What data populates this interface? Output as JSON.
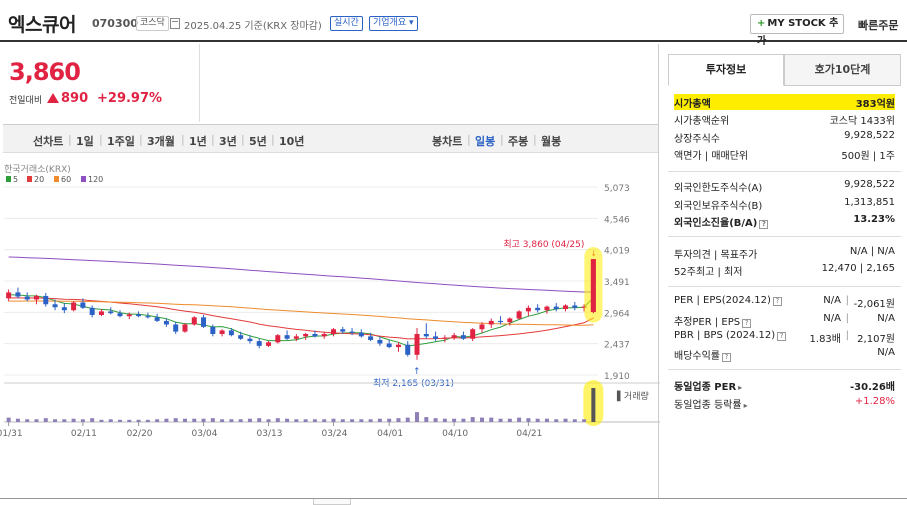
{
  "header": {
    "name": "엑스큐어",
    "code": "070300",
    "market": "코스닥",
    "date": "2025.04.25 기준(KRX 장마감)",
    "realtime": "실시간",
    "overview": "기업개요",
    "mystock": "MY STOCK 추가",
    "quick_order": "빠른주문"
  },
  "price": {
    "current": "3,860",
    "change_label": "전일대비",
    "change": "890",
    "rate": "+29.97%"
  },
  "chart_tabs": {
    "line": "선차트",
    "periods": [
      "1일",
      "1주일",
      "3개월",
      "1년",
      "3년",
      "5년",
      "10년"
    ],
    "candle": "봉차트",
    "candle_periods": [
      "일봉",
      "주봉",
      "월봉"
    ],
    "active_candle": "일봉"
  },
  "chart_data": {
    "type": "candlestick",
    "source": "한국거래소(KRX)",
    "ma_legend": [
      {
        "name": "5",
        "color": "#2e9e3a"
      },
      {
        "name": "20",
        "color": "#e33b3b"
      },
      {
        "name": "60",
        "color": "#ef8b2c"
      },
      {
        "name": "120",
        "color": "#8e4fc0"
      }
    ],
    "y_ticks": [
      "5,073",
      "4,546",
      "4,019",
      "3,491",
      "2,964",
      "2,437",
      "1,910"
    ],
    "ylim": [
      1910,
      5073
    ],
    "x_ticks": [
      "01/31",
      "02/11",
      "02/20",
      "03/04",
      "03/13",
      "03/24",
      "04/01",
      "04/10",
      "04/21"
    ],
    "high_label": "최고 3,860 (04/25)",
    "low_label": "최저 2,165 (03/31)",
    "volume_label": "거래량",
    "candles": [
      [
        3200,
        3350,
        3150,
        3300
      ],
      [
        3300,
        3380,
        3200,
        3230
      ],
      [
        3230,
        3300,
        3150,
        3180
      ],
      [
        3180,
        3260,
        3100,
        3240
      ],
      [
        3240,
        3290,
        3060,
        3100
      ],
      [
        3100,
        3180,
        3000,
        3050
      ],
      [
        3050,
        3120,
        2950,
        3000
      ],
      [
        3000,
        3150,
        2980,
        3130
      ],
      [
        3130,
        3200,
        3020,
        3040
      ],
      [
        3040,
        3080,
        2880,
        2920
      ],
      [
        2920,
        3020,
        2900,
        2980
      ],
      [
        2980,
        3050,
        2930,
        2950
      ],
      [
        2950,
        3000,
        2880,
        2900
      ],
      [
        2900,
        2960,
        2850,
        2930
      ],
      [
        2930,
        2980,
        2880,
        2900
      ],
      [
        2900,
        2960,
        2860,
        2880
      ],
      [
        2880,
        2940,
        2800,
        2820
      ],
      [
        2820,
        2860,
        2720,
        2760
      ],
      [
        2760,
        2800,
        2600,
        2640
      ],
      [
        2640,
        2780,
        2620,
        2760
      ],
      [
        2760,
        2900,
        2740,
        2880
      ],
      [
        2880,
        2920,
        2700,
        2720
      ],
      [
        2720,
        2760,
        2560,
        2600
      ],
      [
        2600,
        2680,
        2560,
        2660
      ],
      [
        2660,
        2700,
        2560,
        2580
      ],
      [
        2580,
        2640,
        2500,
        2520
      ],
      [
        2520,
        2580,
        2440,
        2480
      ],
      [
        2480,
        2520,
        2360,
        2400
      ],
      [
        2400,
        2480,
        2380,
        2460
      ],
      [
        2460,
        2600,
        2440,
        2580
      ],
      [
        2580,
        2660,
        2500,
        2520
      ],
      [
        2520,
        2600,
        2480,
        2560
      ],
      [
        2560,
        2620,
        2500,
        2600
      ],
      [
        2600,
        2660,
        2540,
        2560
      ],
      [
        2560,
        2640,
        2520,
        2600
      ],
      [
        2600,
        2700,
        2560,
        2680
      ],
      [
        2680,
        2720,
        2600,
        2640
      ],
      [
        2640,
        2700,
        2580,
        2620
      ],
      [
        2620,
        2680,
        2540,
        2560
      ],
      [
        2560,
        2620,
        2480,
        2500
      ],
      [
        2500,
        2560,
        2400,
        2440
      ],
      [
        2440,
        2500,
        2360,
        2380
      ],
      [
        2380,
        2460,
        2300,
        2420
      ],
      [
        2420,
        2480,
        2220,
        2250
      ],
      [
        2250,
        2700,
        2165,
        2600
      ],
      [
        2600,
        2780,
        2520,
        2560
      ],
      [
        2560,
        2640,
        2480,
        2520
      ],
      [
        2520,
        2580,
        2460,
        2540
      ],
      [
        2540,
        2620,
        2500,
        2580
      ],
      [
        2580,
        2640,
        2500,
        2520
      ],
      [
        2520,
        2700,
        2480,
        2680
      ],
      [
        2680,
        2800,
        2620,
        2760
      ],
      [
        2760,
        2860,
        2700,
        2820
      ],
      [
        2820,
        2900,
        2760,
        2800
      ],
      [
        2800,
        2880,
        2740,
        2860
      ],
      [
        2860,
        3000,
        2840,
        2980
      ],
      [
        2980,
        3080,
        2900,
        3040
      ],
      [
        3040,
        3100,
        2960,
        3000
      ],
      [
        3000,
        3080,
        2940,
        3060
      ],
      [
        3060,
        3120,
        2980,
        3020
      ],
      [
        3020,
        3100,
        2980,
        3080
      ],
      [
        3080,
        3140,
        3000,
        3040
      ],
      [
        3040,
        3100,
        2980,
        3060
      ],
      [
        2970,
        3860,
        2950,
        3860
      ]
    ],
    "volume": [
      8,
      6,
      5,
      5,
      7,
      5,
      5,
      6,
      5,
      7,
      4,
      5,
      4,
      4,
      4,
      4,
      5,
      6,
      7,
      6,
      6,
      6,
      7,
      5,
      5,
      5,
      6,
      7,
      5,
      7,
      6,
      5,
      5,
      5,
      5,
      6,
      5,
      5,
      5,
      5,
      6,
      6,
      7,
      8,
      18,
      9,
      7,
      6,
      6,
      6,
      9,
      8,
      8,
      6,
      6,
      8,
      7,
      6,
      6,
      5,
      6,
      5,
      5,
      62
    ]
  },
  "investment_panel": {
    "tabs": [
      "투자정보",
      "호가10단계"
    ],
    "rows": [
      {
        "k": "시가총액",
        "v": "383억원",
        "highlight": true
      },
      {
        "k": "시가총액순위",
        "v": "코스닥 1433위"
      },
      {
        "k": "상장주식수",
        "v": "9,928,522"
      },
      {
        "k": "액면가 | 매매단위",
        "v": "500원 | 1주"
      },
      {
        "k": "외국인한도주식수(A)",
        "v": "9,928,522"
      },
      {
        "k": "외국인보유주식수(B)",
        "v": "1,313,851"
      },
      {
        "k": "외국인소진율(B/A)",
        "v": "13.23%"
      },
      {
        "k": "투자의견 | 목표주가",
        "v": "N/A | N/A"
      },
      {
        "k": "52주최고 | 최저",
        "v": "12,470 | 2,165"
      },
      {
        "k": "PER | EPS(2024.12)",
        "v1": "N/A",
        "v": "-2,061원"
      },
      {
        "k": "추정PER | EPS",
        "v1": "N/A",
        "v": "N/A"
      },
      {
        "k": "PBR | BPS (2024.12)",
        "v1": "1.83배",
        "v": "2,107원"
      },
      {
        "k": "배당수익률",
        "v": "N/A"
      },
      {
        "k": "동일업종 PER",
        "v": "-30.26배"
      },
      {
        "k": "동일업종 등락률",
        "v": "+1.28%"
      }
    ]
  }
}
